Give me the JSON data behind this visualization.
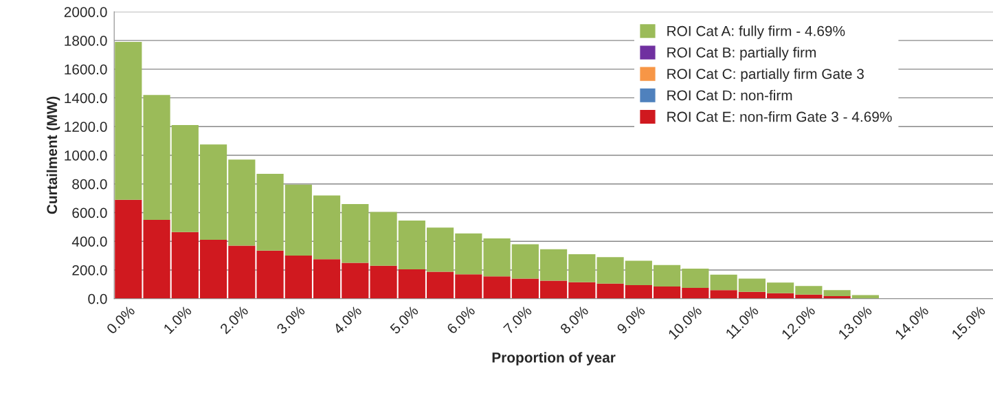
{
  "chart_data": {
    "type": "bar",
    "stacked": true,
    "xlabel": "Proportion of year",
    "ylabel": "Curtailment (MW)",
    "categories": [
      "0.0%",
      null,
      "1.0%",
      null,
      "2.0%",
      null,
      "3.0%",
      null,
      "4.0%",
      null,
      "5.0%",
      null,
      "6.0%",
      null,
      "7.0%",
      null,
      "8.0%",
      null,
      "9.0%",
      null,
      "10.0%",
      null,
      "11.0%",
      null,
      "12.0%",
      null,
      "13.0%",
      null,
      "14.0%",
      null,
      "15.0%"
    ],
    "series": [
      {
        "name": "ROI Cat E: non-firm Gate 3 - 4.69%",
        "color": "#d0191f",
        "values": [
          690,
          550,
          465,
          410,
          370,
          335,
          300,
          275,
          250,
          230,
          205,
          188,
          170,
          155,
          140,
          125,
          115,
          105,
          95,
          85,
          75,
          60,
          48,
          38,
          28,
          18,
          null,
          0,
          0,
          0,
          0
        ]
      },
      {
        "name": "ROI Cat D: non-firm",
        "color": "#4f81bd",
        "values": [
          0,
          0,
          0,
          0,
          0,
          0,
          0,
          0,
          0,
          0,
          0,
          0,
          0,
          0,
          0,
          0,
          0,
          0,
          0,
          0,
          0,
          0,
          0,
          0,
          0,
          0,
          0,
          0,
          0,
          0,
          0
        ]
      },
      {
        "name": "ROI Cat C: partially firm Gate 3",
        "color": "#f79646",
        "values": [
          0,
          0,
          0,
          0,
          0,
          0,
          0,
          0,
          0,
          0,
          0,
          0,
          0,
          0,
          0,
          0,
          0,
          0,
          0,
          0,
          0,
          0,
          0,
          0,
          0,
          0,
          0,
          0,
          0,
          0,
          0
        ]
      },
      {
        "name": "ROI Cat B: partially firm",
        "color": "#7030a0",
        "values": [
          0,
          0,
          0,
          0,
          0,
          0,
          0,
          0,
          0,
          0,
          0,
          0,
          0,
          0,
          0,
          0,
          0,
          0,
          0,
          0,
          0,
          0,
          0,
          0,
          0,
          0,
          0,
          0,
          0,
          0,
          0
        ]
      },
      {
        "name": "ROI Cat A: fully firm - 4.69%",
        "color": "#9bbb59",
        "values": [
          1100,
          870,
          745,
          665,
          600,
          535,
          495,
          445,
          410,
          375,
          340,
          307,
          285,
          265,
          240,
          220,
          195,
          185,
          170,
          150,
          135,
          108,
          92,
          74,
          60,
          42,
          25,
          0,
          0,
          0,
          0
        ]
      }
    ],
    "ylim": [
      0,
      2000
    ],
    "yticks": [
      {
        "value": 0,
        "label": "0.0"
      },
      {
        "value": 200,
        "label": "200.0"
      },
      {
        "value": 400,
        "label": "400.0"
      },
      {
        "value": 600,
        "label": "600.0"
      },
      {
        "value": 800,
        "label": "800.0"
      },
      {
        "value": 1000,
        "label": "1000.0"
      },
      {
        "value": 1200,
        "label": "1200.0"
      },
      {
        "value": 1400,
        "label": "1400.0"
      },
      {
        "value": 1600,
        "label": "1600.0"
      },
      {
        "value": 1800,
        "label": "1800.0"
      },
      {
        "value": 2000,
        "label": "2000.0"
      }
    ],
    "grid": "y",
    "legend": "top right"
  }
}
